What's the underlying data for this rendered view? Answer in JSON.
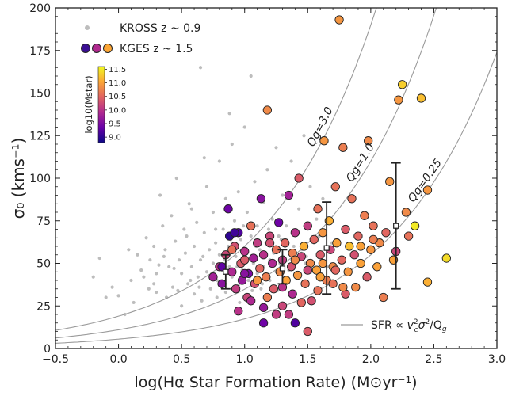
{
  "chart_data": {
    "type": "scatter",
    "xlabel": "log(Hα Star Formation Rate) (M⊙yr⁻¹)",
    "ylabel": "σ₀ (kms⁻¹)",
    "xlim": [
      -0.5,
      3.0
    ],
    "ylim": [
      0,
      200
    ],
    "xticks": [
      -0.5,
      0.0,
      0.5,
      1.0,
      1.5,
      2.0,
      2.5,
      3.0
    ],
    "yticks": [
      0,
      25,
      50,
      75,
      100,
      125,
      150,
      175,
      200
    ],
    "xtick_labels": [
      "−0.5",
      "0.0",
      "0.5",
      "1.0",
      "1.5",
      "2.0",
      "2.5",
      "3.0"
    ],
    "ytick_labels": [
      "0",
      "25",
      "50",
      "75",
      "100",
      "125",
      "150",
      "175",
      "200"
    ],
    "grid": false,
    "legend": {
      "placement": "top-left",
      "entries": [
        "KROSS z ~ 0.9",
        "KGES z ~ 1.5"
      ],
      "curve_entry": "SFR ∝ v²c σ²/Qg",
      "curve_entry_placement": "bottom-right"
    },
    "colorbar": {
      "label": "log10(Mstar)",
      "ticks": [
        "11.5",
        "11.0",
        "10.5",
        "10.0",
        "9.5",
        "9.0"
      ],
      "range": [
        8.8,
        11.6
      ],
      "placement": "upper-left inset"
    },
    "curves": [
      {
        "label": "Qg=3.0",
        "Q": 3.0,
        "y_at_x0": 19.0
      },
      {
        "label": "Qg=1.0",
        "Q": 1.0,
        "y_at_x0": 11.0
      },
      {
        "label": "Qg=0.25",
        "Q": 0.25,
        "y_at_x0": 5.5
      }
    ],
    "binned_points": [
      {
        "x": 0.85,
        "y": 45,
        "y_low": 35,
        "y_high": 55
      },
      {
        "x": 1.3,
        "y": 47,
        "y_low": 38,
        "y_high": 58
      },
      {
        "x": 1.65,
        "y": 59,
        "y_low": 32,
        "y_high": 86
      },
      {
        "x": 2.2,
        "y": 72,
        "y_low": 35,
        "y_high": 109
      }
    ],
    "kross_series": {
      "name": "KROSS z ~ 0.9",
      "color": "#bdbdbd",
      "points": [
        [
          -0.15,
          53
        ],
        [
          -0.05,
          36
        ],
        [
          -0.1,
          30
        ],
        [
          0.0,
          31
        ],
        [
          0.05,
          20
        ],
        [
          0.1,
          40
        ],
        [
          0.15,
          55
        ],
        [
          0.18,
          46
        ],
        [
          0.2,
          42
        ],
        [
          0.22,
          65
        ],
        [
          0.25,
          52
        ],
        [
          0.28,
          60
        ],
        [
          0.3,
          44
        ],
        [
          0.3,
          33
        ],
        [
          0.32,
          49
        ],
        [
          0.35,
          72
        ],
        [
          0.37,
          58
        ],
        [
          0.38,
          30
        ],
        [
          0.4,
          48
        ],
        [
          0.42,
          78
        ],
        [
          0.43,
          36
        ],
        [
          0.45,
          63
        ],
        [
          0.46,
          100
        ],
        [
          0.48,
          52
        ],
        [
          0.5,
          44
        ],
        [
          0.5,
          25
        ],
        [
          0.52,
          70
        ],
        [
          0.53,
          56
        ],
        [
          0.55,
          38
        ],
        [
          0.56,
          85
        ],
        [
          0.58,
          48
        ],
        [
          0.6,
          60
        ],
        [
          0.6,
          32
        ],
        [
          0.62,
          74
        ],
        [
          0.63,
          42
        ],
        [
          0.65,
          52
        ],
        [
          0.65,
          165
        ],
        [
          0.66,
          28
        ],
        [
          0.68,
          68
        ],
        [
          0.7,
          45
        ],
        [
          0.7,
          95
        ],
        [
          0.72,
          58
        ],
        [
          0.73,
          35
        ],
        [
          0.75,
          80
        ],
        [
          0.75,
          50
        ],
        [
          0.77,
          62
        ],
        [
          0.78,
          40
        ],
        [
          0.8,
          110
        ],
        [
          0.8,
          55
        ],
        [
          0.82,
          46
        ],
        [
          0.83,
          70
        ],
        [
          0.85,
          33
        ],
        [
          0.85,
          88
        ],
        [
          0.87,
          60
        ],
        [
          0.88,
          48
        ],
        [
          0.9,
          120
        ],
        [
          0.9,
          42
        ],
        [
          0.92,
          75
        ],
        [
          0.93,
          54
        ],
        [
          0.95,
          37
        ],
        [
          0.95,
          92
        ],
        [
          0.97,
          64
        ],
        [
          0.98,
          46
        ],
        [
          1.0,
          130
        ],
        [
          1.0,
          55
        ],
        [
          1.02,
          80
        ],
        [
          1.03,
          40
        ],
        [
          1.05,
          66
        ],
        [
          1.05,
          160
        ],
        [
          1.07,
          50
        ],
        [
          1.08,
          98
        ],
        [
          1.1,
          44
        ],
        [
          1.1,
          72
        ],
        [
          1.12,
          58
        ],
        [
          1.13,
          35
        ],
        [
          1.15,
          86
        ],
        [
          1.15,
          48
        ],
        [
          1.17,
          62
        ],
        [
          1.18,
          105
        ],
        [
          1.2,
          52
        ],
        [
          1.2,
          40
        ],
        [
          1.22,
          76
        ],
        [
          1.23,
          56
        ],
        [
          1.25,
          45
        ],
        [
          1.25,
          118
        ],
        [
          1.27,
          66
        ],
        [
          1.28,
          50
        ],
        [
          1.3,
          90
        ],
        [
          1.3,
          38
        ],
        [
          1.32,
          60
        ],
        [
          1.33,
          72
        ],
        [
          1.35,
          46
        ],
        [
          1.37,
          110
        ],
        [
          1.38,
          55
        ],
        [
          1.4,
          68
        ],
        [
          1.42,
          42
        ],
        [
          1.43,
          82
        ],
        [
          1.45,
          58
        ],
        [
          1.47,
          125
        ],
        [
          1.48,
          50
        ],
        [
          1.5,
          70
        ],
        [
          1.52,
          95
        ],
        [
          1.53,
          45
        ],
        [
          1.55,
          62
        ],
        [
          1.57,
          76
        ],
        [
          1.6,
          55
        ],
        [
          1.62,
          88
        ],
        [
          1.65,
          48
        ],
        [
          0.28,
          38
        ],
        [
          0.36,
          54
        ],
        [
          0.44,
          47
        ],
        [
          0.54,
          66
        ],
        [
          0.64,
          36
        ],
        [
          0.74,
          44
        ],
        [
          0.84,
          52
        ],
        [
          0.94,
          48
        ],
        [
          1.04,
          42
        ],
        [
          1.14,
          38
        ],
        [
          0.12,
          27
        ],
        [
          0.24,
          35
        ],
        [
          0.58,
          82
        ],
        [
          0.68,
          112
        ],
        [
          0.78,
          30
        ],
        [
          0.88,
          138
        ],
        [
          0.96,
          27
        ],
        [
          1.06,
          34
        ],
        [
          1.16,
          30
        ],
        [
          1.26,
          34
        ],
        [
          -0.2,
          42
        ],
        [
          0.08,
          58
        ],
        [
          0.33,
          90
        ],
        [
          0.47,
          34
        ],
        [
          0.57,
          40
        ],
        [
          0.67,
          54
        ],
        [
          0.77,
          70
        ],
        [
          0.89,
          64
        ],
        [
          0.99,
          72
        ],
        [
          1.09,
          60
        ],
        [
          1.19,
          70
        ],
        [
          1.29,
          64
        ],
        [
          1.39,
          60
        ],
        [
          1.49,
          54
        ],
        [
          1.59,
          66
        ],
        [
          1.69,
          62
        ]
      ]
    },
    "kges_series": {
      "name": "KGES z ~ 1.5",
      "color_scale": "log10(Mstar)",
      "points": [
        [
          0.75,
          42,
          9.8
        ],
        [
          0.8,
          48,
          10.0
        ],
        [
          0.82,
          38,
          9.6
        ],
        [
          0.85,
          55,
          10.2
        ],
        [
          0.87,
          82,
          9.4
        ],
        [
          0.88,
          66,
          9.0
        ],
        [
          0.9,
          45,
          9.9
        ],
        [
          0.92,
          60,
          10.3
        ],
        [
          0.93,
          35,
          10.1
        ],
        [
          0.95,
          68,
          9.2
        ],
        [
          0.97,
          50,
          10.4
        ],
        [
          0.98,
          40,
          9.7
        ],
        [
          1.0,
          57,
          10.0
        ],
        [
          1.02,
          30,
          10.2
        ],
        [
          1.03,
          44,
          9.5
        ],
        [
          1.05,
          72,
          10.6
        ],
        [
          1.07,
          53,
          9.8
        ],
        [
          1.08,
          38,
          10.3
        ],
        [
          1.1,
          62,
          10.1
        ],
        [
          1.12,
          47,
          10.5
        ],
        [
          1.13,
          88,
          9.6
        ],
        [
          1.15,
          55,
          10.0
        ],
        [
          1.17,
          42,
          10.7
        ],
        [
          1.18,
          140,
          10.8
        ],
        [
          1.2,
          66,
          10.2
        ],
        [
          1.22,
          50,
          9.9
        ],
        [
          1.23,
          35,
          10.4
        ],
        [
          1.25,
          58,
          10.6
        ],
        [
          1.27,
          74,
          9.4
        ],
        [
          1.28,
          45,
          10.8
        ],
        [
          1.3,
          52,
          10.1
        ],
        [
          1.32,
          62,
          10.5
        ],
        [
          1.33,
          40,
          11.0
        ],
        [
          1.35,
          90,
          9.8
        ],
        [
          1.37,
          48,
          10.3
        ],
        [
          1.38,
          56,
          10.7
        ],
        [
          1.4,
          68,
          10.0
        ],
        [
          1.42,
          43,
          10.9
        ],
        [
          1.43,
          100,
          10.4
        ],
        [
          1.45,
          54,
          10.2
        ],
        [
          1.47,
          60,
          11.1
        ],
        [
          1.48,
          38,
          10.6
        ],
        [
          1.5,
          72,
          10.1
        ],
        [
          1.52,
          50,
          10.8
        ],
        [
          1.53,
          28,
          10.3
        ],
        [
          1.55,
          64,
          10.5
        ],
        [
          1.57,
          46,
          11.0
        ],
        [
          1.58,
          82,
          10.6
        ],
        [
          1.6,
          55,
          10.4
        ],
        [
          1.62,
          68,
          10.9
        ],
        [
          1.63,
          122,
          10.9
        ],
        [
          1.65,
          40,
          10.7
        ],
        [
          1.67,
          75,
          11.1
        ],
        [
          1.68,
          58,
          10.2
        ],
        [
          1.7,
          48,
          10.8
        ],
        [
          1.72,
          95,
          10.6
        ],
        [
          1.73,
          62,
          11.0
        ],
        [
          1.75,
          193,
          10.9
        ],
        [
          1.77,
          52,
          10.5
        ],
        [
          1.78,
          118,
          10.7
        ],
        [
          1.8,
          70,
          10.4
        ],
        [
          1.82,
          45,
          10.9
        ],
        [
          1.83,
          60,
          11.2
        ],
        [
          1.85,
          88,
          10.6
        ],
        [
          1.87,
          55,
          10.3
        ],
        [
          1.88,
          36,
          10.8
        ],
        [
          1.9,
          66,
          10.5
        ],
        [
          1.92,
          50,
          11.0
        ],
        [
          1.95,
          78,
          10.7
        ],
        [
          1.97,
          42,
          10.4
        ],
        [
          1.98,
          122,
          10.8
        ],
        [
          2.0,
          58,
          10.9
        ],
        [
          2.02,
          72,
          10.6
        ],
        [
          2.05,
          48,
          11.0
        ],
        [
          2.07,
          62,
          10.8
        ],
        [
          2.1,
          30,
          10.7
        ],
        [
          2.12,
          68,
          10.5
        ],
        [
          2.15,
          98,
          10.9
        ],
        [
          2.18,
          52,
          11.0
        ],
        [
          2.2,
          57,
          10.2
        ],
        [
          2.22,
          146,
          10.9
        ],
        [
          2.25,
          155,
          11.3
        ],
        [
          2.28,
          80,
          10.8
        ],
        [
          2.3,
          66,
          10.6
        ],
        [
          2.35,
          72,
          11.5
        ],
        [
          2.4,
          147,
          11.2
        ],
        [
          2.45,
          93,
          10.9
        ],
        [
          2.45,
          39,
          11.1
        ],
        [
          2.6,
          53,
          11.4
        ],
        [
          1.3,
          25,
          10.2
        ],
        [
          1.15,
          15,
          9.4
        ],
        [
          1.4,
          15,
          9.2
        ],
        [
          1.5,
          10,
          10.4
        ],
        [
          0.95,
          22,
          10.0
        ],
        [
          1.05,
          28,
          9.9
        ],
        [
          1.25,
          20,
          10.1
        ],
        [
          0.82,
          48,
          9.3
        ],
        [
          0.9,
          58,
          10.6
        ],
        [
          1.0,
          44,
          9.6
        ],
        [
          1.1,
          40,
          10.9
        ],
        [
          1.2,
          62,
          10.3
        ],
        [
          1.3,
          36,
          10.0
        ],
        [
          1.4,
          52,
          10.8
        ],
        [
          1.5,
          46,
          10.2
        ],
        [
          1.6,
          42,
          11.0
        ],
        [
          1.7,
          38,
          10.6
        ],
        [
          1.8,
          32,
          10.4
        ],
        [
          1.35,
          20,
          10.1
        ],
        [
          1.62,
          50,
          10.9
        ],
        [
          1.72,
          46,
          10.5
        ],
        [
          1.92,
          60,
          11.0
        ],
        [
          2.02,
          64,
          10.7
        ],
        [
          0.92,
          68,
          9.1
        ],
        [
          1.0,
          52,
          10.4
        ],
        [
          1.15,
          24,
          9.7
        ],
        [
          1.45,
          27,
          10.5
        ],
        [
          1.18,
          30,
          10.7
        ],
        [
          1.38,
          32,
          9.9
        ],
        [
          1.58,
          34,
          10.6
        ],
        [
          1.78,
          36,
          10.8
        ]
      ]
    }
  },
  "colors": {
    "kross": "#bdbdbd",
    "curve": "#9a9a9a",
    "errorbar": "#222222",
    "cmap": [
      "#0d0887",
      "#6a00a8",
      "#b12a90",
      "#e16462",
      "#fca636",
      "#f0f921"
    ]
  },
  "legend_text": {
    "kross": "KROSS z ~ 0.9",
    "kges": "KGES z ~ 1.5",
    "curve_prefix": "SFR ∝ "
  }
}
